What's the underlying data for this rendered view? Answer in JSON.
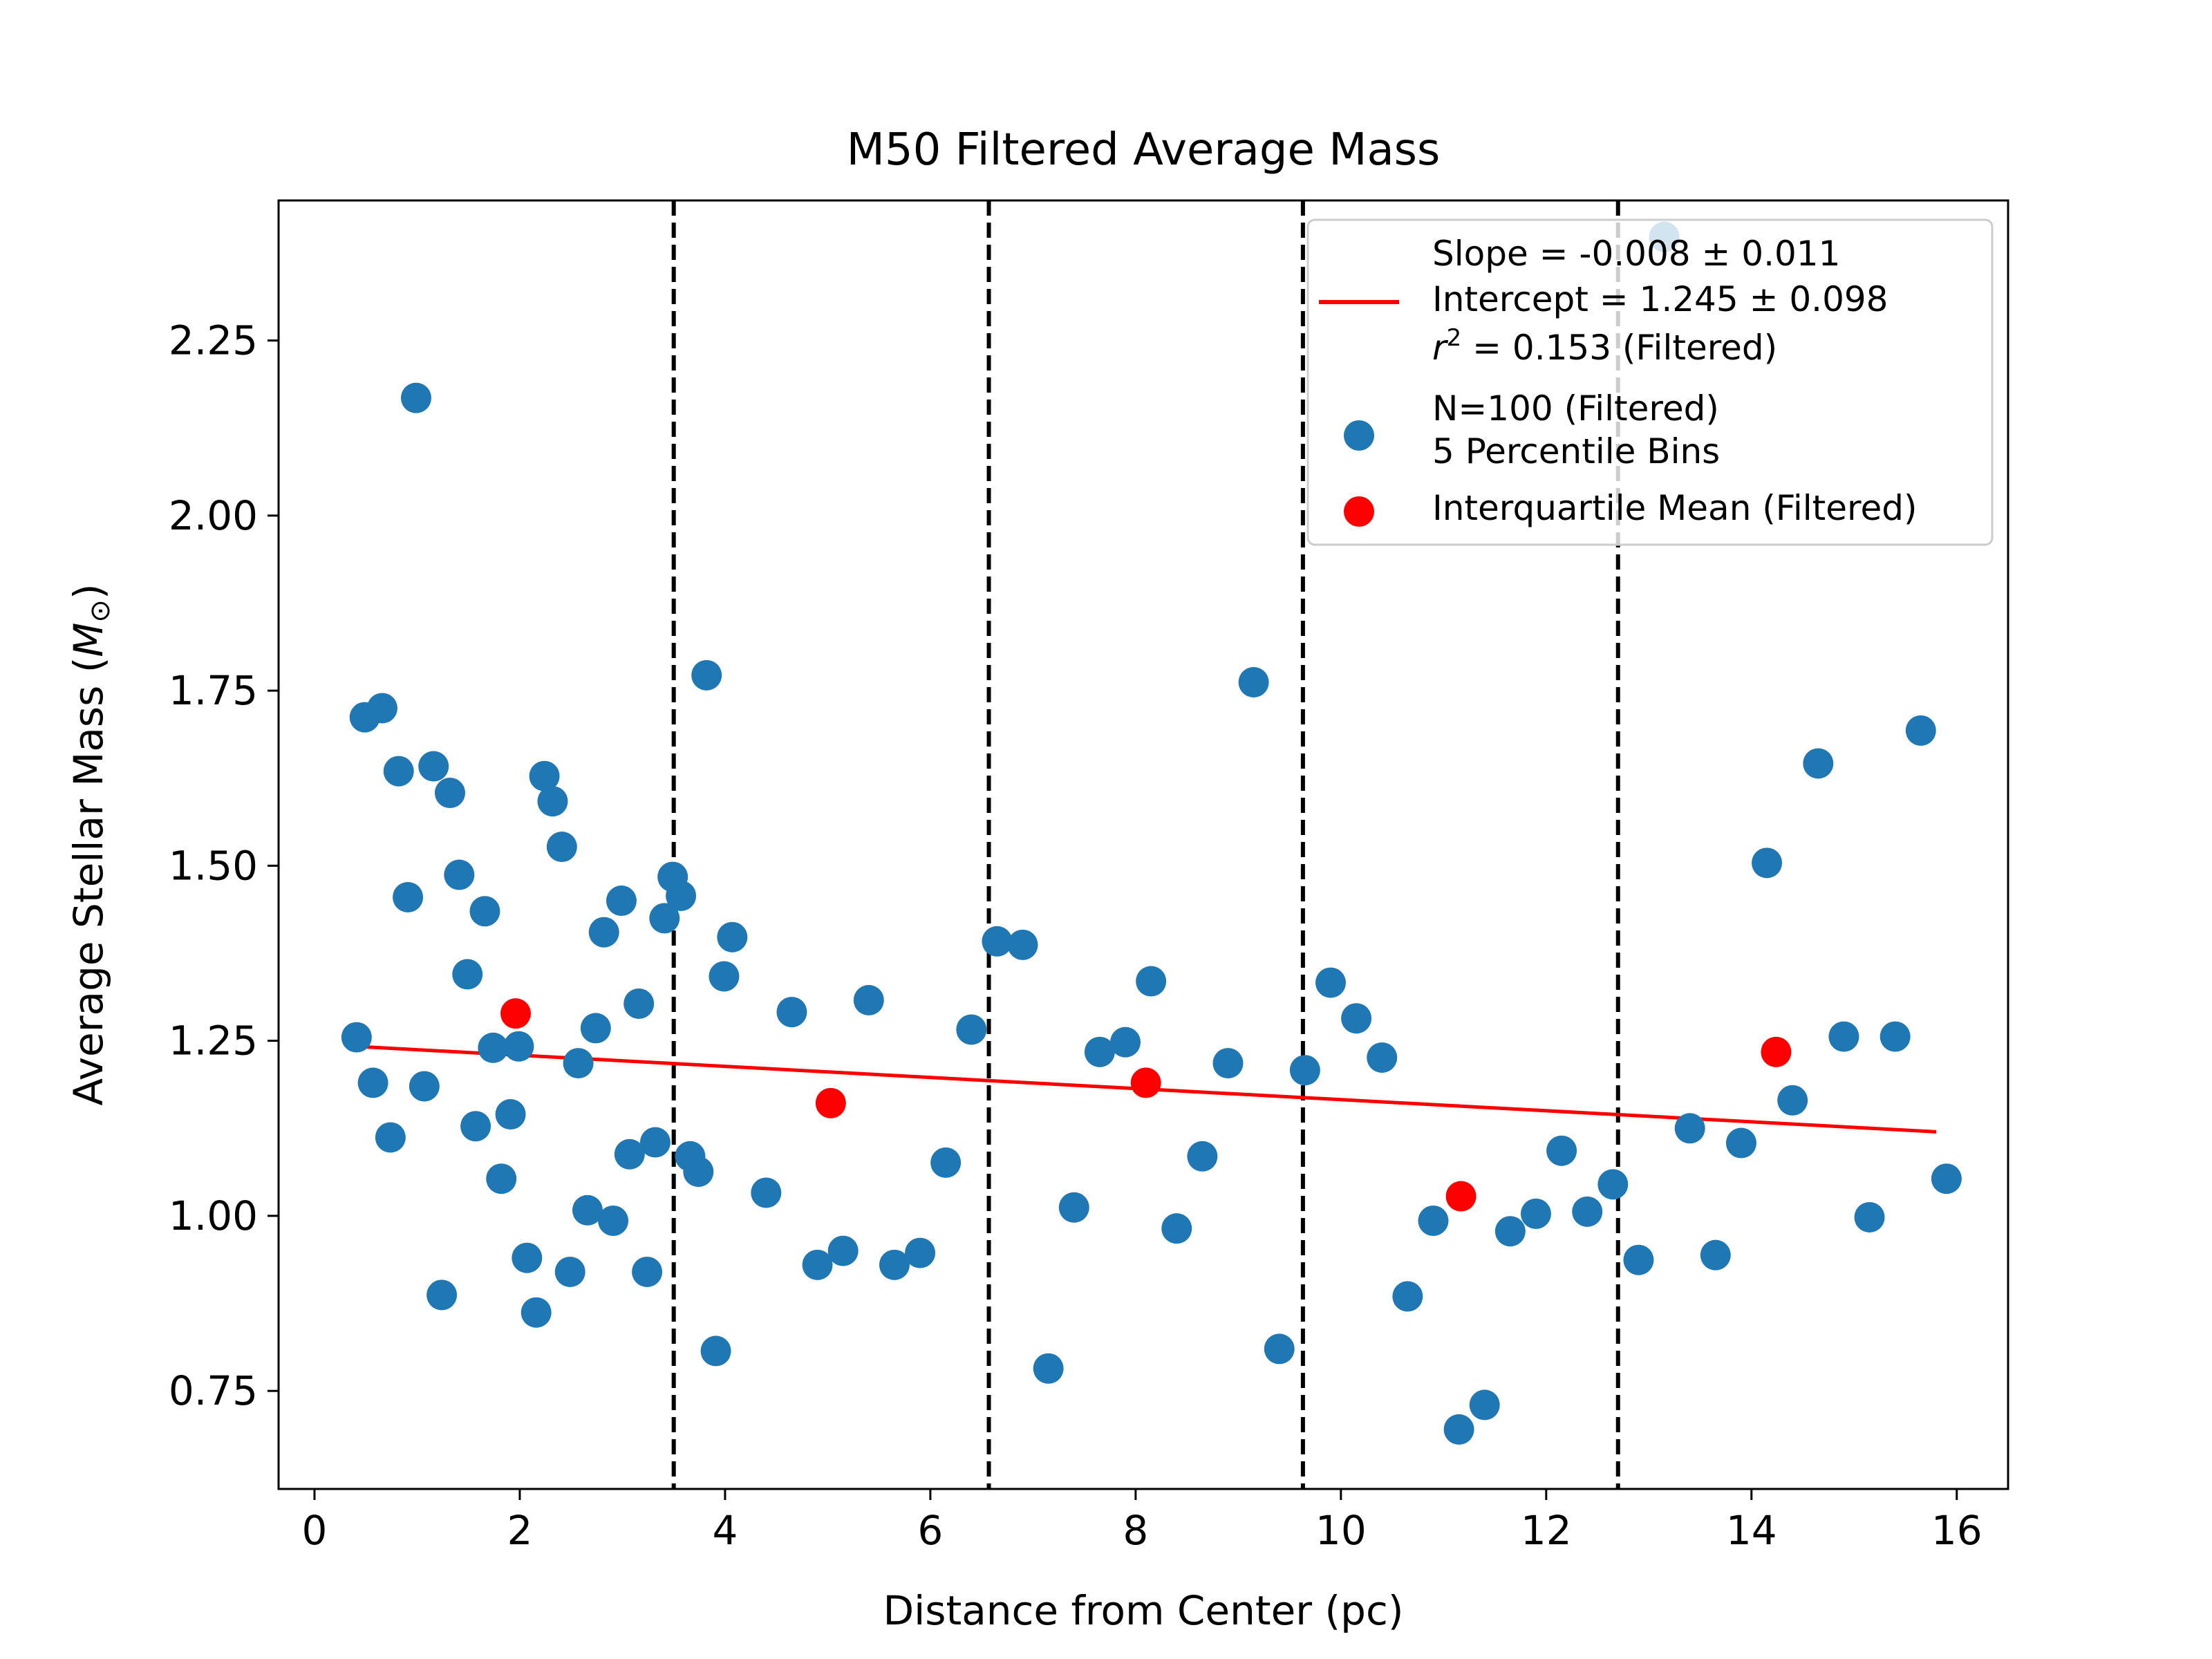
{
  "chart_data": {
    "type": "scatter",
    "title": "M50 Filtered Average Mass",
    "xlabel": "Distance from Center (pc)",
    "ylabel_main": "Average Stellar Mass (",
    "ylabel_sym": "M",
    "ylabel_sub": "⊙",
    "ylabel_end": ")",
    "xlim": [
      -0.35,
      16.5
    ],
    "ylim": [
      0.61,
      2.45
    ],
    "xticks": [
      0,
      2,
      4,
      6,
      8,
      10,
      12,
      14,
      16
    ],
    "xtick_labels": [
      "0",
      "2",
      "4",
      "6",
      "8",
      "10",
      "12",
      "14",
      "16"
    ],
    "yticks": [
      0.75,
      1.0,
      1.25,
      1.5,
      1.75,
      2.0,
      2.25
    ],
    "ytick_labels": [
      "0.75",
      "1.00",
      "1.25",
      "1.50",
      "1.75",
      "2.00",
      "2.25"
    ],
    "bin_edges": [
      3.5,
      6.57,
      9.63,
      12.7
    ],
    "fit_line": {
      "x": [
        0.4,
        15.8
      ],
      "y": [
        1.242,
        1.12
      ],
      "color": "#ff0000",
      "legend_lines": [
        "Slope = -0.008 ± 0.011",
        "Intercept = 1.245 ± 0.098",
        "(Filtered)"
      ],
      "r2_prefix": "r",
      "r2_exp": "2",
      "r2_value": " = 0.153 "
    },
    "series": [
      {
        "name": "N=100 (Filtered)",
        "name_line2": "5 Percentile Bins",
        "color": "#1f77b4",
        "points": [
          [
            0.41,
            1.255
          ],
          [
            0.49,
            1.712
          ],
          [
            0.57,
            1.19
          ],
          [
            0.66,
            1.725
          ],
          [
            0.74,
            1.112
          ],
          [
            0.82,
            1.635
          ],
          [
            0.91,
            1.455
          ],
          [
            0.99,
            2.168
          ],
          [
            1.07,
            1.185
          ],
          [
            1.16,
            1.642
          ],
          [
            1.24,
            0.887
          ],
          [
            1.32,
            1.604
          ],
          [
            1.41,
            1.487
          ],
          [
            1.49,
            1.345
          ],
          [
            1.57,
            1.128
          ],
          [
            1.66,
            1.435
          ],
          [
            1.74,
            1.24
          ],
          [
            1.82,
            1.053
          ],
          [
            1.91,
            1.145
          ],
          [
            1.99,
            1.242
          ],
          [
            2.07,
            0.94
          ],
          [
            2.16,
            0.862
          ],
          [
            2.24,
            1.628
          ],
          [
            2.32,
            1.592
          ],
          [
            2.41,
            1.527
          ],
          [
            2.49,
            0.92
          ],
          [
            2.57,
            1.218
          ],
          [
            2.66,
            1.008
          ],
          [
            2.74,
            1.268
          ],
          [
            2.82,
            1.405
          ],
          [
            2.91,
            0.993
          ],
          [
            2.99,
            1.45
          ],
          [
            3.07,
            1.088
          ],
          [
            3.16,
            1.303
          ],
          [
            3.24,
            0.92
          ],
          [
            3.32,
            1.105
          ],
          [
            3.41,
            1.425
          ],
          [
            3.49,
            1.484
          ],
          [
            3.57,
            1.457
          ],
          [
            3.66,
            1.085
          ],
          [
            3.74,
            1.063
          ],
          [
            3.82,
            1.772
          ],
          [
            3.91,
            0.807
          ],
          [
            3.99,
            1.342
          ],
          [
            4.07,
            1.398
          ],
          [
            4.4,
            1.033
          ],
          [
            4.65,
            1.291
          ],
          [
            4.9,
            0.93
          ],
          [
            5.15,
            0.95
          ],
          [
            5.4,
            1.308
          ],
          [
            5.65,
            0.93
          ],
          [
            5.9,
            0.947
          ],
          [
            6.15,
            1.076
          ],
          [
            6.4,
            1.266
          ],
          [
            6.65,
            1.392
          ],
          [
            6.9,
            1.387
          ],
          [
            7.15,
            0.782
          ],
          [
            7.4,
            1.012
          ],
          [
            7.65,
            1.234
          ],
          [
            7.9,
            1.248
          ],
          [
            8.15,
            1.335
          ],
          [
            8.4,
            0.982
          ],
          [
            8.65,
            1.085
          ],
          [
            8.9,
            1.218
          ],
          [
            9.15,
            1.762
          ],
          [
            9.4,
            0.81
          ],
          [
            9.65,
            1.208
          ],
          [
            9.9,
            1.333
          ],
          [
            10.15,
            1.282
          ],
          [
            10.4,
            1.226
          ],
          [
            10.65,
            0.885
          ],
          [
            10.9,
            0.993
          ],
          [
            11.15,
            0.695
          ],
          [
            11.4,
            0.73
          ],
          [
            11.65,
            0.978
          ],
          [
            11.9,
            1.003
          ],
          [
            12.15,
            1.093
          ],
          [
            12.4,
            1.006
          ],
          [
            12.65,
            1.045
          ],
          [
            12.9,
            0.937
          ],
          [
            13.15,
            2.398
          ],
          [
            13.4,
            1.125
          ],
          [
            13.65,
            0.944
          ],
          [
            13.9,
            1.104
          ],
          [
            14.15,
            1.504
          ],
          [
            14.4,
            1.165
          ],
          [
            14.65,
            1.646
          ],
          [
            14.9,
            1.256
          ],
          [
            15.15,
            0.998
          ],
          [
            15.4,
            1.256
          ],
          [
            15.65,
            1.693
          ],
          [
            15.9,
            1.053
          ]
        ]
      },
      {
        "name": "Interquartile Mean (Filtered)",
        "color": "#ff0000",
        "points": [
          [
            1.96,
            1.289
          ],
          [
            5.03,
            1.161
          ],
          [
            8.1,
            1.19
          ],
          [
            11.17,
            1.028
          ],
          [
            14.24,
            1.234
          ]
        ]
      }
    ],
    "legend_position": "upper right",
    "grid": false
  }
}
